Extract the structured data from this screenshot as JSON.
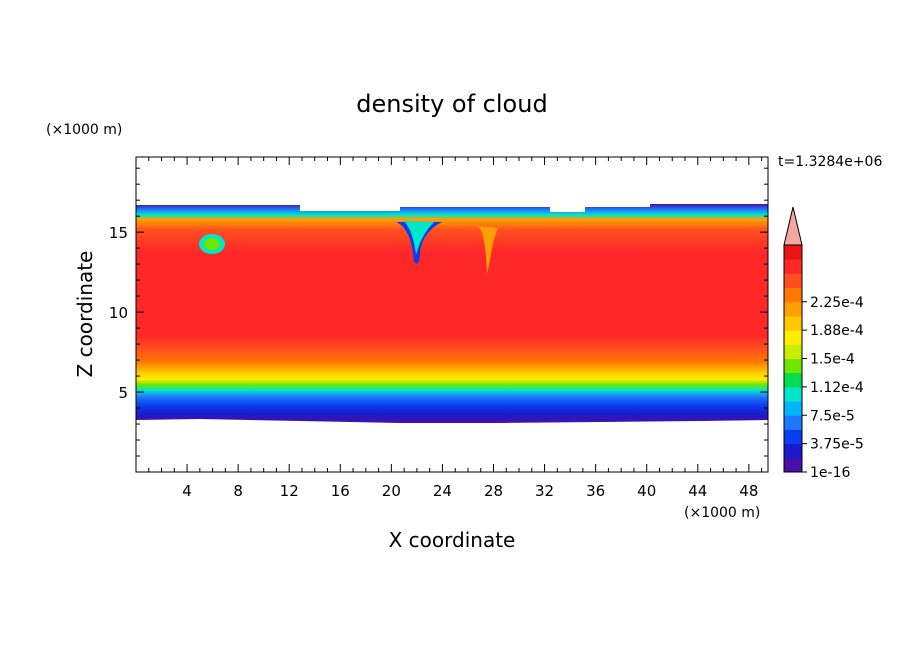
{
  "chart_data": {
    "type": "heatmap",
    "title": "density of cloud",
    "xlabel": "X coordinate",
    "ylabel": "Z coordinate",
    "x_unit": "(×1000 m)",
    "y_unit": "(×1000 m)",
    "time_label": "t=1.3284e+06",
    "xlim": [
      0,
      49.5
    ],
    "ylim": [
      0,
      19.7
    ],
    "x_ticks": [
      4,
      8,
      12,
      16,
      20,
      24,
      28,
      32,
      36,
      40,
      44,
      48
    ],
    "y_ticks": [
      5,
      10,
      15
    ],
    "colorbar": {
      "levels": [
        "1e-16",
        "3.75e-5",
        "7.5e-5",
        "1.12e-4",
        "1.5e-4",
        "1.88e-4",
        "2.25e-4"
      ],
      "colors": [
        "#4a0fa8",
        "#1a1acc",
        "#0a3cf0",
        "#1e78ff",
        "#00b4ff",
        "#00e6c8",
        "#00dd50",
        "#6ee600",
        "#c8ee00",
        "#ffee00",
        "#ffc800",
        "#ffa000",
        "#ff7800",
        "#ff4f1e",
        "#ff2828",
        "#ee1414"
      ],
      "over_color": "#f4a6a0",
      "extend": "max"
    }
  }
}
